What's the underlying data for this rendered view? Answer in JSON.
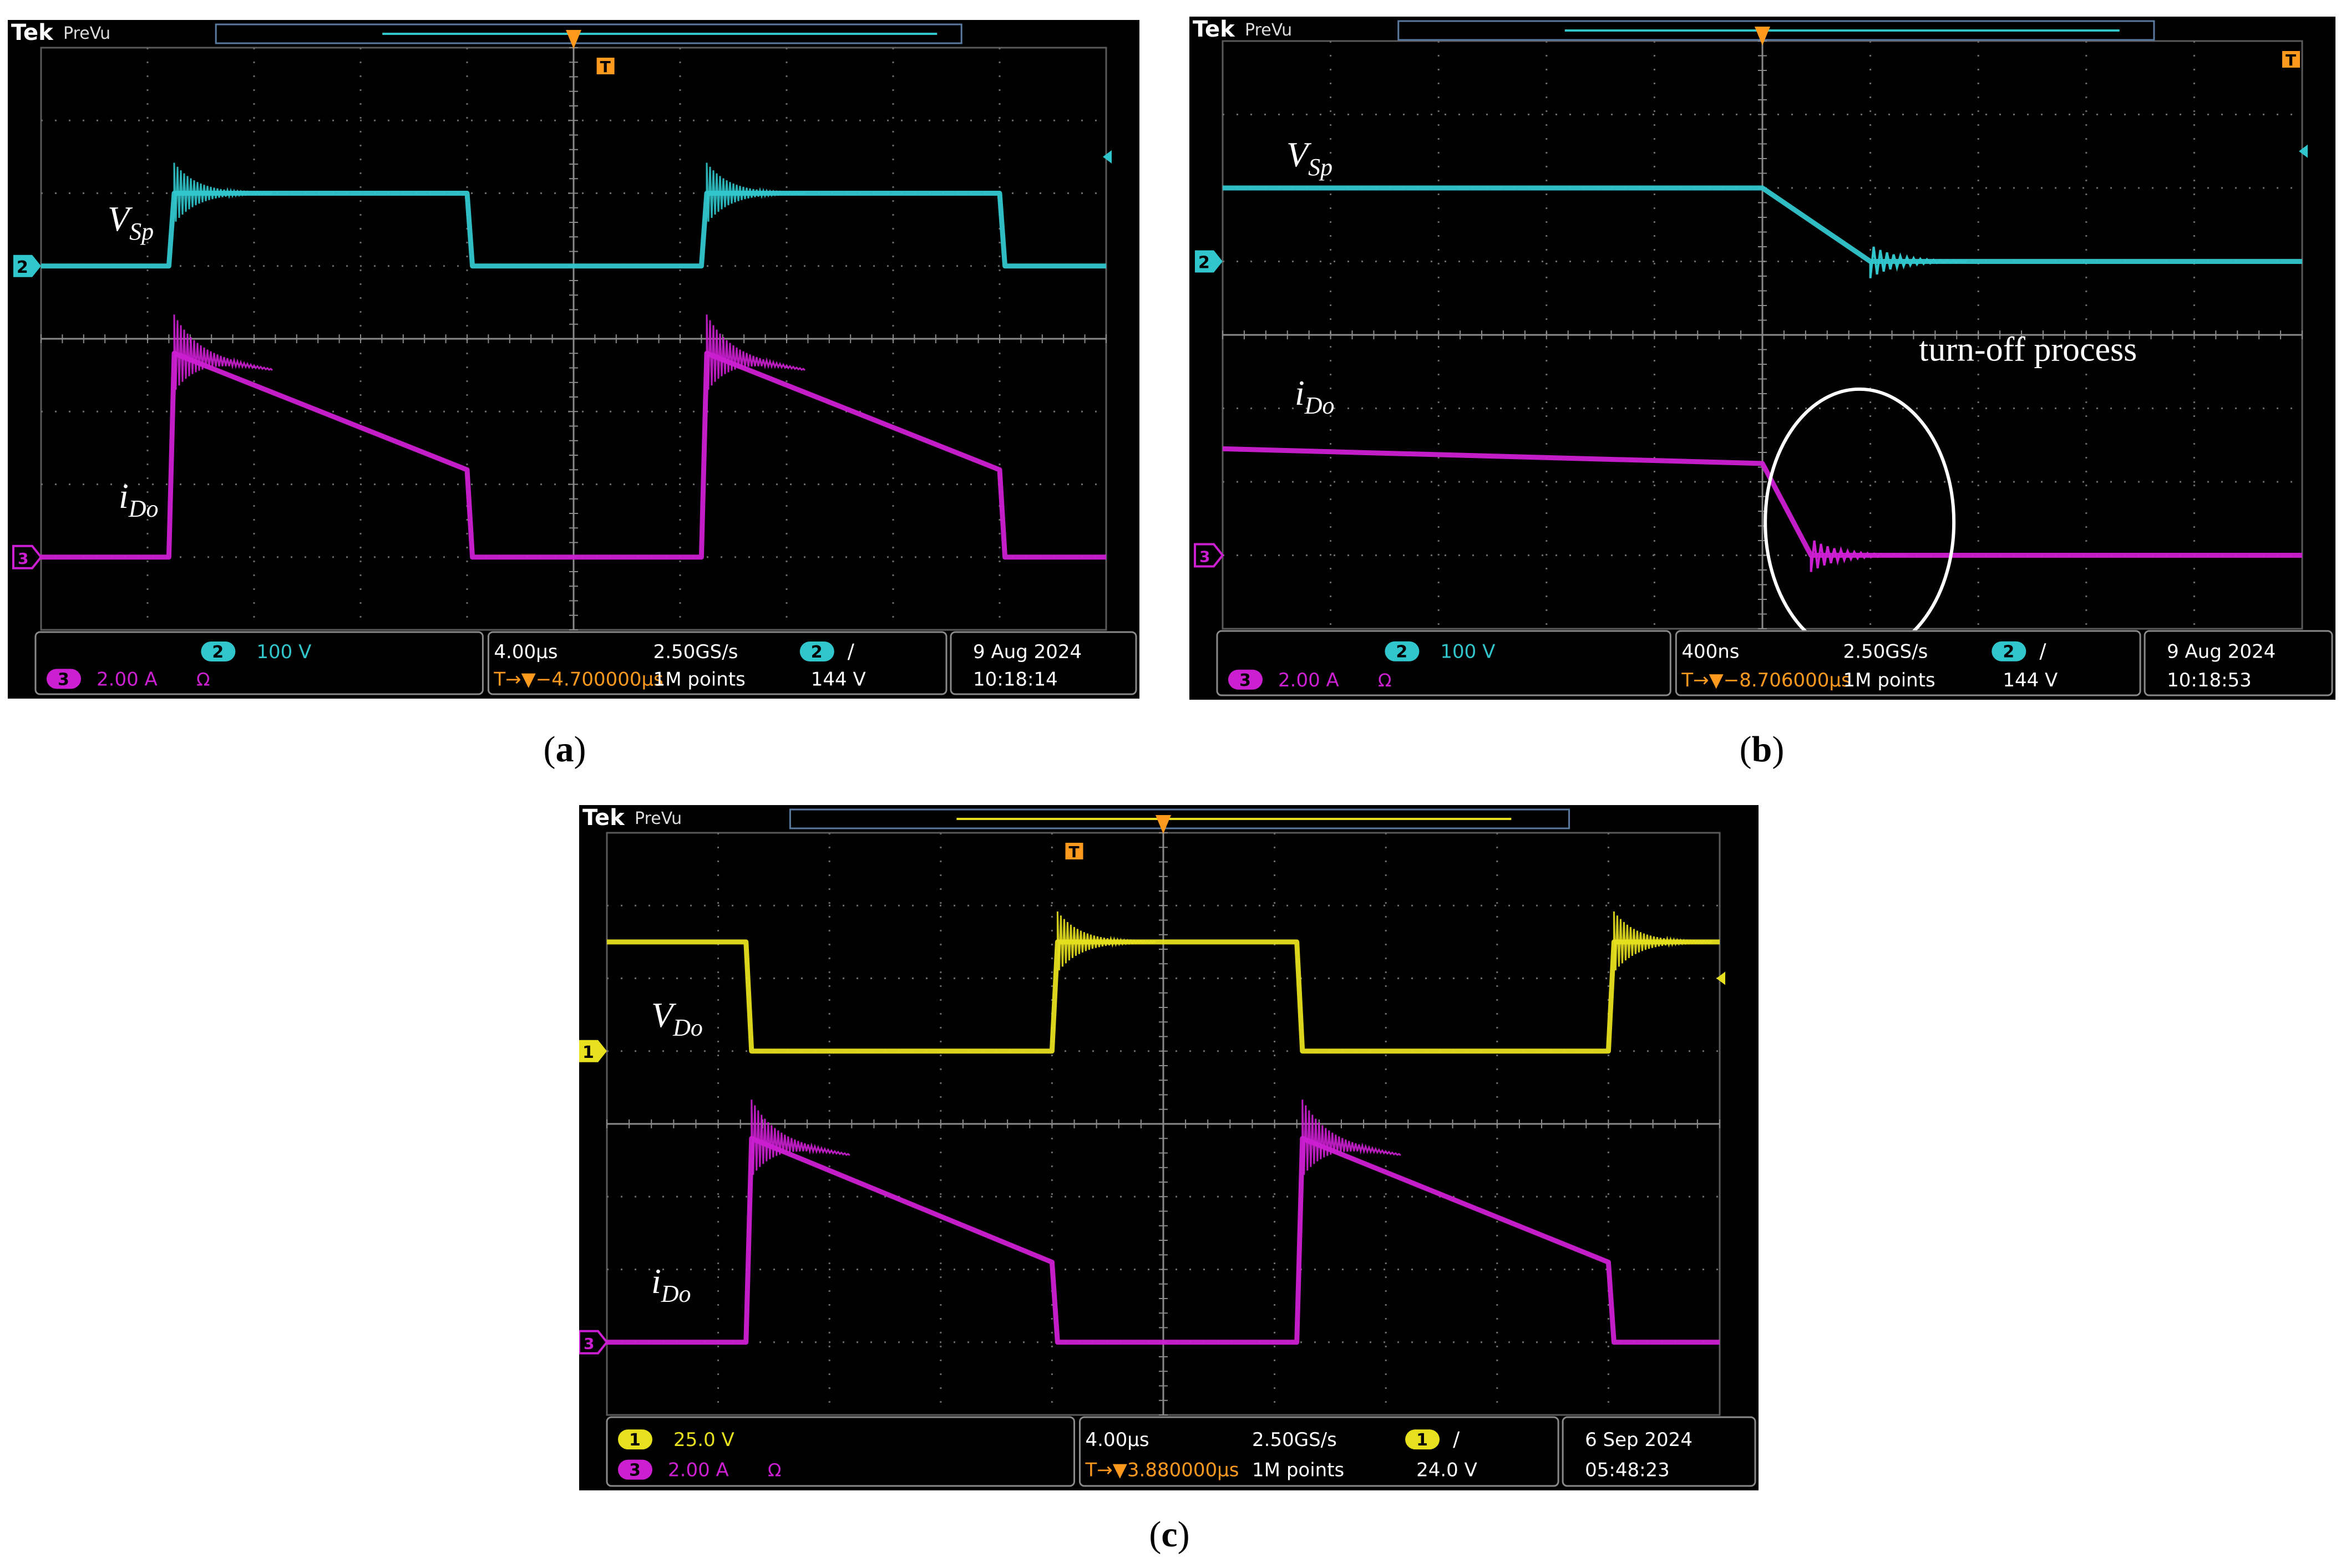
{
  "figure": {
    "captions": [
      {
        "open": "(",
        "letter": "a",
        "close": ")"
      },
      {
        "open": "(",
        "letter": "b",
        "close": ")"
      },
      {
        "open": "(",
        "letter": "c",
        "close": ")"
      }
    ]
  },
  "scopes": [
    {
      "id": "a",
      "brand": "Tek",
      "mode": "PreVu",
      "trigger_marker": "T",
      "ch_markers": [
        "2",
        "3"
      ],
      "labels": [
        {
          "main": "V",
          "sub": "Sp"
        },
        {
          "main": "i",
          "sub": "Do"
        }
      ],
      "readout": {
        "ch_a_num": "2",
        "ch_a_scale": "100 V",
        "ch_b_num": "3",
        "ch_b_scale": "2.00 A",
        "ohm": "Ω",
        "timebase": "4.00µs",
        "delay": "T→▼−4.700000µs",
        "rate": "2.50GS/s",
        "points": "1M points",
        "trig_ch": "2",
        "trig_slope": "∕",
        "trig_level": "144 V",
        "date": "9 Aug 2024",
        "time": "10:18:14"
      },
      "colors": {
        "ch_a": "#31c6cc",
        "ch_b": "#cc1fd1"
      }
    },
    {
      "id": "b",
      "brand": "Tek",
      "mode": "PreVu",
      "trigger_marker": "T",
      "ch_markers": [
        "2",
        "3"
      ],
      "labels": [
        {
          "main": "V",
          "sub": "Sp"
        },
        {
          "main": "i",
          "sub": "Do"
        }
      ],
      "annotation": "turn-off process",
      "readout": {
        "ch_a_num": "2",
        "ch_a_scale": "100 V",
        "ch_b_num": "3",
        "ch_b_scale": "2.00 A",
        "ohm": "Ω",
        "timebase": "400ns",
        "delay": "T→▼−8.706000µs",
        "rate": "2.50GS/s",
        "points": "1M points",
        "trig_ch": "2",
        "trig_slope": "∕",
        "trig_level": "144 V",
        "date": "9 Aug 2024",
        "time": "10:18:53"
      },
      "colors": {
        "ch_a": "#31c6cc",
        "ch_b": "#cc1fd1"
      }
    },
    {
      "id": "c",
      "brand": "Tek",
      "mode": "PreVu",
      "trigger_marker": "T",
      "ch_markers": [
        "1",
        "3"
      ],
      "labels": [
        {
          "main": "V",
          "sub": "Do"
        },
        {
          "main": "i",
          "sub": "Do"
        }
      ],
      "readout": {
        "ch_a_num": "1",
        "ch_a_scale": "25.0 V",
        "ch_b_num": "3",
        "ch_b_scale": "2.00 A",
        "ohm": "Ω",
        "timebase": "4.00µs",
        "delay": "T→▼3.880000µs",
        "rate": "2.50GS/s",
        "points": "1M points",
        "trig_ch": "1",
        "trig_slope": "∕",
        "trig_level": "24.0 V",
        "date": "6 Sep 2024",
        "time": "05:48:23"
      },
      "colors": {
        "ch_a": "#e6e01e",
        "ch_b": "#cc1fd1"
      }
    }
  ],
  "chart_data": [
    {
      "type": "line",
      "panel": "a",
      "x_unit": "div",
      "y_unit": "div",
      "xlim": [
        0,
        10
      ],
      "ylim": [
        -4,
        4
      ],
      "grid": true,
      "series": [
        {
          "name": "V_Sp",
          "x": [
            0,
            1.2,
            1.25,
            4.0,
            4.05,
            6.2,
            6.25,
            9.0,
            9.05,
            10
          ],
          "y": [
            1.0,
            1.0,
            2.0,
            2.0,
            1.0,
            1.0,
            2.0,
            2.0,
            1.0,
            1.0
          ]
        },
        {
          "name": "i_Do",
          "x": [
            0,
            1.2,
            1.25,
            4.0,
            4.05,
            6.2,
            6.25,
            9.0,
            9.05,
            10
          ],
          "y": [
            -3.0,
            -3.0,
            -0.2,
            -1.8,
            -3.0,
            -3.0,
            -0.2,
            -1.8,
            -3.0,
            -3.0
          ]
        }
      ]
    },
    {
      "type": "line",
      "panel": "b",
      "x_unit": "div",
      "y_unit": "div",
      "xlim": [
        0,
        10
      ],
      "ylim": [
        -4,
        4
      ],
      "grid": true,
      "series": [
        {
          "name": "V_Sp",
          "x": [
            0,
            5.0,
            6.0,
            10
          ],
          "y": [
            2.0,
            2.0,
            1.0,
            1.0
          ]
        },
        {
          "name": "i_Do",
          "x": [
            0,
            5.0,
            5.45,
            10
          ],
          "y": [
            -1.55,
            -1.75,
            -3.0,
            -3.0
          ]
        }
      ]
    },
    {
      "type": "line",
      "panel": "c",
      "x_unit": "div",
      "y_unit": "div",
      "xlim": [
        0,
        10
      ],
      "ylim": [
        -4,
        4
      ],
      "grid": true,
      "series": [
        {
          "name": "V_Do",
          "x": [
            0,
            1.25,
            1.3,
            4.0,
            4.05,
            6.2,
            6.25,
            9.0,
            9.05,
            10
          ],
          "y": [
            2.5,
            2.5,
            1.0,
            1.0,
            2.5,
            2.5,
            1.0,
            1.0,
            2.5,
            2.5
          ]
        },
        {
          "name": "i_Do",
          "x": [
            0,
            1.25,
            1.3,
            4.0,
            4.05,
            6.2,
            6.25,
            9.0,
            9.05,
            10
          ],
          "y": [
            -3.0,
            -3.0,
            -0.2,
            -1.9,
            -3.0,
            -3.0,
            -0.2,
            -1.9,
            -3.0,
            -3.0
          ]
        }
      ]
    }
  ]
}
